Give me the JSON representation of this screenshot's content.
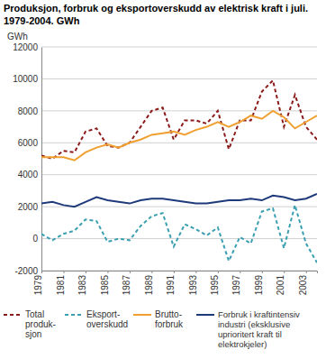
{
  "chart_data": {
    "type": "line",
    "title": "Produksjon, forbruk og eksportoverskudd av elektrisk kraft i juli. 1979-2004. GWh",
    "y_label": "GWh",
    "x": [
      1979,
      1980,
      1981,
      1982,
      1983,
      1984,
      1985,
      1986,
      1987,
      1988,
      1989,
      1990,
      1991,
      1992,
      1993,
      1994,
      1995,
      1996,
      1997,
      1998,
      1999,
      2000,
      2001,
      2002,
      2003,
      2004
    ],
    "xlim": [
      1979,
      2004
    ],
    "xticks": [
      1979,
      1981,
      1983,
      1985,
      1987,
      1989,
      1991,
      1993,
      1995,
      1997,
      1999,
      2001,
      2003
    ],
    "ylim": [
      -2000,
      12000
    ],
    "yticks": [
      -2000,
      0,
      2000,
      4000,
      6000,
      8000,
      10000,
      12000
    ],
    "grid": true,
    "legend": "bottom",
    "series": [
      {
        "name": "Total\nproduk-\nsjon",
        "color": "#8b1a1a",
        "line_style": "dashed",
        "values": [
          5200,
          5000,
          5500,
          5400,
          6700,
          6900,
          5800,
          5700,
          6000,
          7000,
          8000,
          8200,
          6200,
          7400,
          7400,
          7200,
          8000,
          5600,
          7400,
          7400,
          9200,
          9900,
          7000,
          9000,
          7000,
          6200
        ]
      },
      {
        "name": "Eksport-\noverskudd",
        "color": "#3a9fb0",
        "line_style": "dashed",
        "values": [
          300,
          -100,
          300,
          500,
          1200,
          1100,
          -200,
          0,
          -100,
          800,
          1400,
          1600,
          -500,
          900,
          600,
          200,
          700,
          -1400,
          100,
          -300,
          1700,
          1900,
          -600,
          2100,
          -300,
          -1500
        ]
      },
      {
        "name": "Brutto-\nforbruk",
        "color": "#f0a030",
        "line_style": "solid",
        "values": [
          5100,
          5100,
          5100,
          4900,
          5400,
          5700,
          5900,
          5700,
          6000,
          6200,
          6500,
          6600,
          6700,
          6500,
          6800,
          7000,
          7300,
          7000,
          7300,
          7700,
          7500,
          8000,
          7600,
          6900,
          7300,
          7700
        ]
      },
      {
        "name": "Forbruk i kraftintensiv\nindustri (eksklusive\nuprioritert kraft til\nelektrokjeler)",
        "color": "#1f3a7a",
        "line_style": "solid",
        "values": [
          2200,
          2300,
          2100,
          2000,
          2300,
          2600,
          2400,
          2300,
          2200,
          2400,
          2500,
          2500,
          2400,
          2300,
          2200,
          2200,
          2300,
          2400,
          2400,
          2500,
          2400,
          2700,
          2600,
          2400,
          2500,
          2800
        ]
      }
    ]
  }
}
